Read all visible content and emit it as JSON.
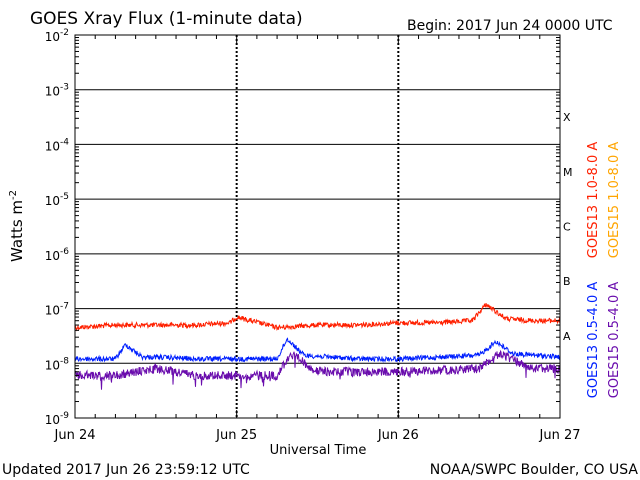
{
  "header": {
    "title": "GOES Xray Flux (1-minute data)",
    "begin": "Begin:  2017 Jun 24 0000 UTC"
  },
  "footer": {
    "updated": "Updated 2017 Jun 26 23:59:12 UTC",
    "source": "NOAA/SWPC Boulder, CO USA"
  },
  "chart_data": {
    "type": "line",
    "title": "GOES Xray Flux (1-minute data)",
    "xlabel": "Universal Time",
    "ylabel": "Watts m",
    "ylabel_exp": "-2",
    "yscale": "log",
    "ylim": [
      1e-09,
      0.01
    ],
    "xlim": [
      "2017-06-24 00:00",
      "2017-06-27 00:00"
    ],
    "x_ticks": [
      "Jun 24",
      "Jun 25",
      "Jun 26",
      "Jun 27"
    ],
    "y_ticks": [
      {
        "base": "10",
        "exp": "-2"
      },
      {
        "base": "10",
        "exp": "-3"
      },
      {
        "base": "10",
        "exp": "-4"
      },
      {
        "base": "10",
        "exp": "-5"
      },
      {
        "base": "10",
        "exp": "-6"
      },
      {
        "base": "10",
        "exp": "-7"
      },
      {
        "base": "10",
        "exp": "-8"
      },
      {
        "base": "10",
        "exp": "-9"
      }
    ],
    "flare_classes": [
      "X",
      "M",
      "C",
      "B",
      "A"
    ],
    "grid": true,
    "series": [
      {
        "name": "GOES13 1.0-8.0 A",
        "color": "#ff2000",
        "x": [
          "2017-06-24 00:00",
          "2017-06-24 06:00",
          "2017-06-24 12:00",
          "2017-06-24 18:00",
          "2017-06-24 23:00",
          "2017-06-25 00:00",
          "2017-06-25 06:00",
          "2017-06-25 12:00",
          "2017-06-25 18:00",
          "2017-06-26 00:00",
          "2017-06-26 06:00",
          "2017-06-26 11:00",
          "2017-06-26 13:00",
          "2017-06-26 16:00",
          "2017-06-26 20:00",
          "2017-06-27 00:00"
        ],
        "values": [
          4.5e-08,
          5e-08,
          5e-08,
          5e-08,
          5.5e-08,
          7e-08,
          4.5e-08,
          5e-08,
          5e-08,
          5.5e-08,
          5.5e-08,
          6e-08,
          1.2e-07,
          6.5e-08,
          6e-08,
          6e-08
        ]
      },
      {
        "name": "GOES15 1.0-8.0 A",
        "color": "#ffa500",
        "x": [],
        "values": []
      },
      {
        "name": "GOES13 0.5-4.0 A",
        "color": "#0020ff",
        "x": [
          "2017-06-24 00:00",
          "2017-06-24 06:00",
          "2017-06-24 07:30",
          "2017-06-24 10:00",
          "2017-06-24 12:00",
          "2017-06-24 18:00",
          "2017-06-25 00:00",
          "2017-06-25 06:00",
          "2017-06-25 07:30",
          "2017-06-25 10:00",
          "2017-06-25 18:00",
          "2017-06-26 00:00",
          "2017-06-26 12:00",
          "2017-06-26 14:30",
          "2017-06-26 17:00",
          "2017-06-27 00:00"
        ],
        "values": [
          1.2e-08,
          1.2e-08,
          2.2e-08,
          1.3e-08,
          1.3e-08,
          1.2e-08,
          1.2e-08,
          1.2e-08,
          2.8e-08,
          1.4e-08,
          1.2e-08,
          1.2e-08,
          1.4e-08,
          2.5e-08,
          1.5e-08,
          1.3e-08
        ]
      },
      {
        "name": "GOES15 0.5-4.0 A",
        "color": "#6a0dad",
        "x": [
          "2017-06-24 00:00",
          "2017-06-24 06:00",
          "2017-06-24 12:00",
          "2017-06-24 18:00",
          "2017-06-25 00:00",
          "2017-06-25 06:00",
          "2017-06-25 08:00",
          "2017-06-25 12:00",
          "2017-06-25 18:00",
          "2017-06-26 00:00",
          "2017-06-26 12:00",
          "2017-06-26 15:00",
          "2017-06-26 20:00",
          "2017-06-27 00:00"
        ],
        "values": [
          6e-09,
          6e-09,
          8e-09,
          6e-09,
          6e-09,
          6e-09,
          1.5e-08,
          7e-09,
          7e-09,
          7e-09,
          8e-09,
          1.5e-08,
          8e-09,
          8e-09
        ]
      }
    ]
  }
}
